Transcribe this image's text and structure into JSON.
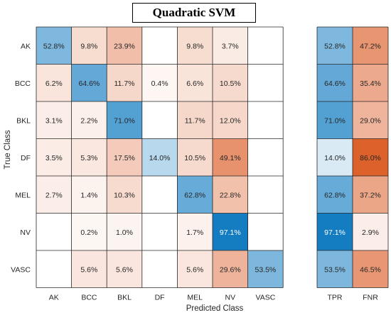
{
  "chart_data": {
    "type": "heatmap",
    "title": "Quadratic SVM",
    "xlabel": "Predicted Class",
    "ylabel": "True Class",
    "classes": [
      "AK",
      "BCC",
      "BKL",
      "DF",
      "MEL",
      "NV",
      "VASC"
    ],
    "matrix": [
      [
        52.8,
        9.8,
        23.9,
        null,
        9.8,
        3.7,
        null
      ],
      [
        6.2,
        64.6,
        11.7,
        0.4,
        6.6,
        10.5,
        null
      ],
      [
        3.1,
        2.2,
        71.0,
        null,
        11.7,
        12.0,
        null
      ],
      [
        3.5,
        5.3,
        17.5,
        14.0,
        10.5,
        49.1,
        null
      ],
      [
        2.7,
        1.4,
        10.3,
        null,
        62.8,
        22.8,
        null
      ],
      [
        null,
        0.2,
        1.0,
        null,
        1.7,
        97.1,
        null
      ],
      [
        null,
        5.6,
        5.6,
        null,
        5.6,
        29.6,
        53.5
      ]
    ],
    "summary_headers": [
      "TPR",
      "FNR"
    ],
    "tpr": [
      52.8,
      64.6,
      71.0,
      14.0,
      62.8,
      97.1,
      53.5
    ],
    "fnr": [
      47.2,
      35.4,
      29.0,
      86.0,
      37.2,
      2.9,
      46.5
    ],
    "value_suffix": "%",
    "colors": {
      "diagonal_scale": "#0072bd",
      "offdiagonal_scale": "#d95319",
      "grid": "#262626",
      "text_light": "#ffffff",
      "text_dark": "#262626"
    }
  }
}
